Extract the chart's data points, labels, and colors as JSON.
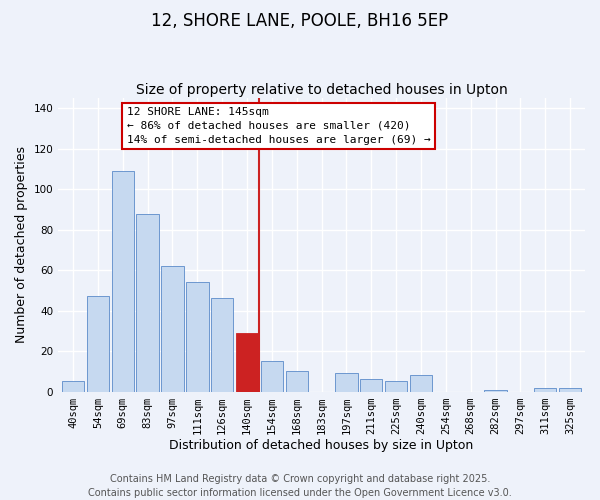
{
  "title": "12, SHORE LANE, POOLE, BH16 5EP",
  "subtitle": "Size of property relative to detached houses in Upton",
  "xlabel": "Distribution of detached houses by size in Upton",
  "ylabel": "Number of detached properties",
  "bar_labels": [
    "40sqm",
    "54sqm",
    "69sqm",
    "83sqm",
    "97sqm",
    "111sqm",
    "126sqm",
    "140sqm",
    "154sqm",
    "168sqm",
    "183sqm",
    "197sqm",
    "211sqm",
    "225sqm",
    "240sqm",
    "254sqm",
    "268sqm",
    "282sqm",
    "297sqm",
    "311sqm",
    "325sqm"
  ],
  "bar_values": [
    5,
    47,
    109,
    88,
    62,
    54,
    46,
    29,
    15,
    10,
    0,
    9,
    6,
    5,
    8,
    0,
    0,
    1,
    0,
    2,
    2
  ],
  "bar_color": "#c6d9f0",
  "bar_edge_color": "#5b8bc9",
  "highlight_index": 7,
  "highlight_color": "#cc2222",
  "vline_x": 7.5,
  "ylim": [
    0,
    145
  ],
  "yticks": [
    0,
    20,
    40,
    60,
    80,
    100,
    120,
    140
  ],
  "annotation_title": "12 SHORE LANE: 145sqm",
  "annotation_line1": "← 86% of detached houses are smaller (420)",
  "annotation_line2": "14% of semi-detached houses are larger (69) →",
  "footer_line1": "Contains HM Land Registry data © Crown copyright and database right 2025.",
  "footer_line2": "Contains public sector information licensed under the Open Government Licence v3.0.",
  "background_color": "#eef2fa",
  "grid_color": "#ffffff",
  "title_fontsize": 12,
  "subtitle_fontsize": 10,
  "axis_label_fontsize": 9,
  "tick_fontsize": 7.5,
  "footer_fontsize": 7
}
